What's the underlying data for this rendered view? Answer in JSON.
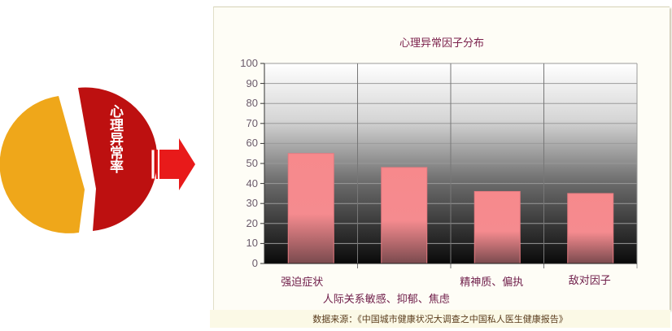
{
  "pie": {
    "label": "心理异常率",
    "colors": {
      "left_slice": "#efa71a",
      "right_slice": "#bd1010"
    }
  },
  "arrow": {
    "icon": "right-arrow-icon",
    "color": "#e81a1a"
  },
  "chart_data": {
    "type": "bar",
    "title": "心理异常因子分布",
    "categories": [
      "强迫症状",
      "人际关系敏感、抑郁、焦虑",
      "精神质、偏执",
      "敌对因子"
    ],
    "values": [
      55,
      48,
      36,
      35
    ],
    "ylim": [
      0,
      100
    ],
    "yticks": [
      "0",
      "10",
      "20",
      "30",
      "40",
      "50",
      "60",
      "70",
      "80",
      "90",
      "100"
    ],
    "grid": true,
    "bar_color": "#f58b8b"
  },
  "source": "数据来源：《中国城市健康状况大调查之中国私人医生健康报告》"
}
